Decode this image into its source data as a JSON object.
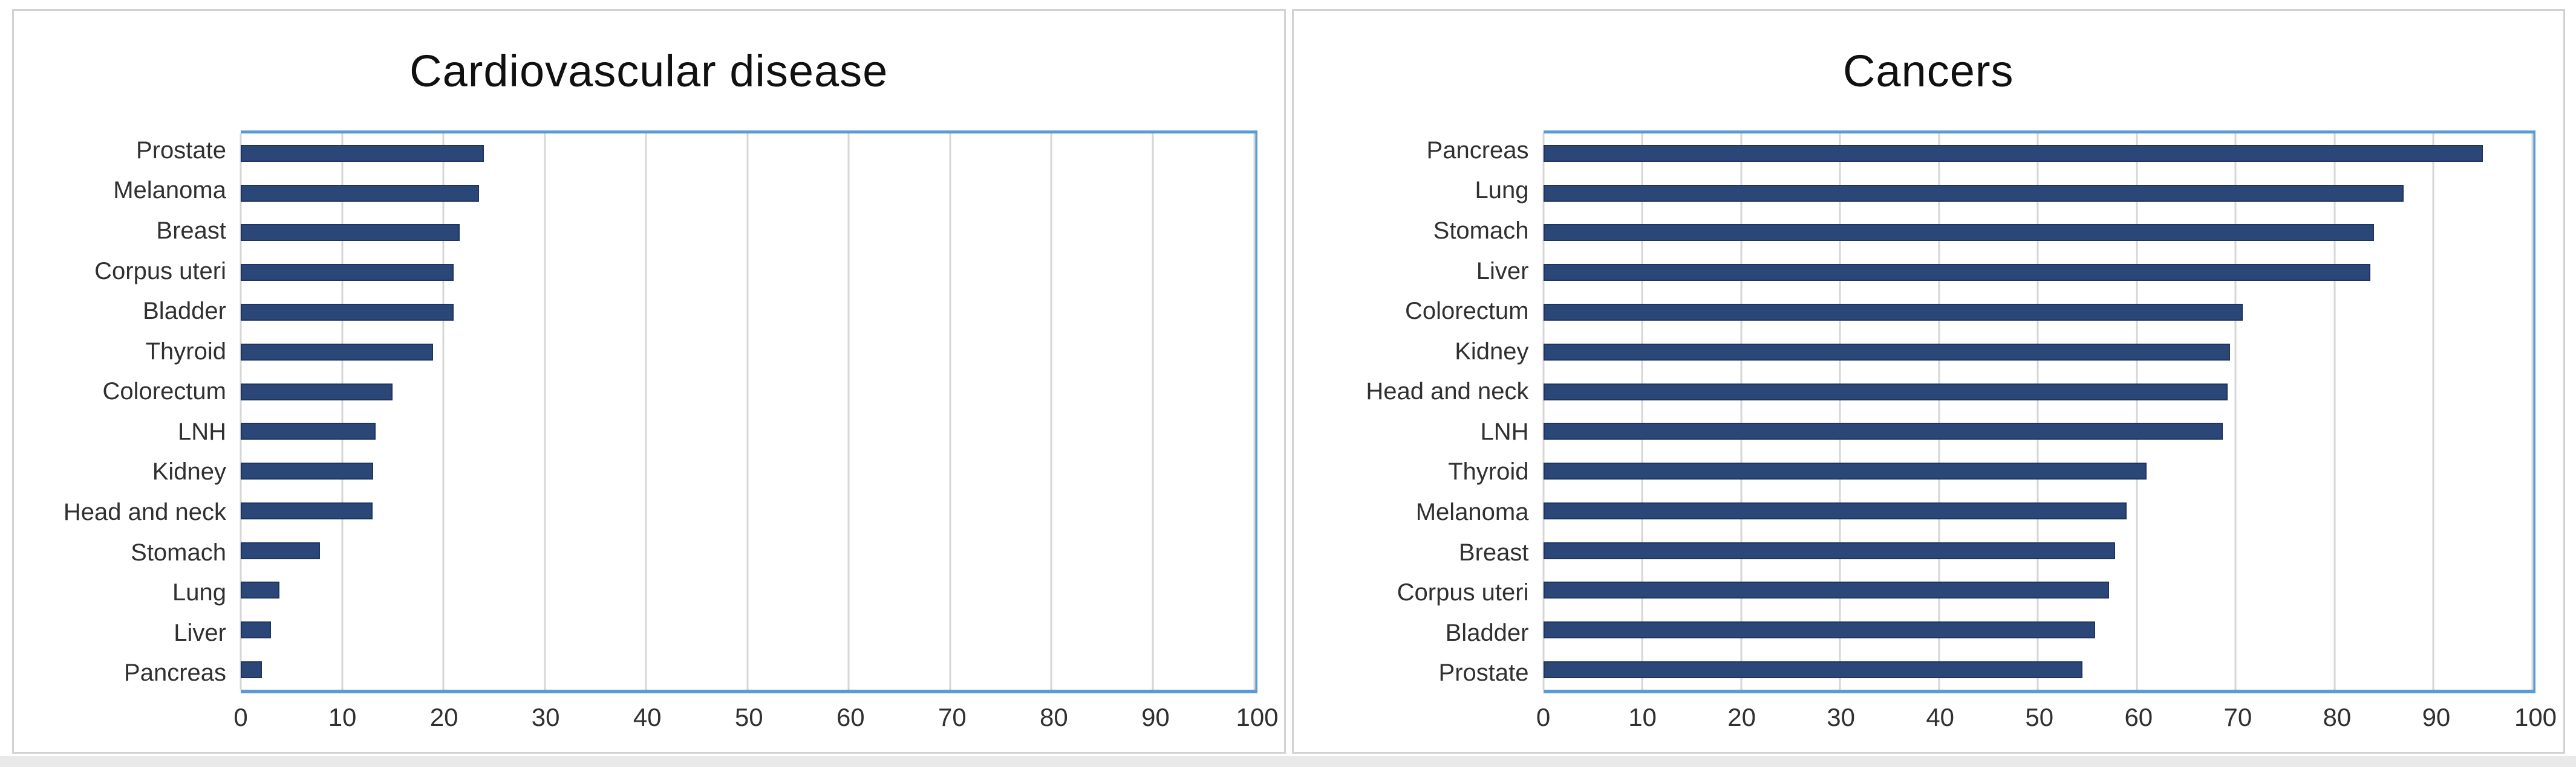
{
  "figure": {
    "background": "#ffffff",
    "bottom_strip_color": "#e9e9e9"
  },
  "chart_data": [
    {
      "type": "bar",
      "orientation": "horizontal",
      "title": "Cardiovascular disease",
      "categories": [
        "Prostate",
        "Melanoma",
        "Breast",
        "Corpus uteri",
        "Bladder",
        "Thyroid",
        "Colorectum",
        "LNH",
        "Kidney",
        "Head and neck",
        "Stomach",
        "Lung",
        "Liver",
        "Pancreas"
      ],
      "values": [
        24,
        23.5,
        21.6,
        21,
        21,
        19,
        15,
        13.3,
        13.1,
        13,
        7.8,
        3.8,
        3,
        2.1
      ],
      "xlabel": "",
      "ylabel": "",
      "xlim": [
        0,
        100
      ],
      "x_ticks": [
        0,
        10,
        20,
        30,
        40,
        50,
        60,
        70,
        80,
        90,
        100
      ],
      "grid": "vertical-major",
      "legend": "none",
      "colors": {
        "bar": "#2b4778",
        "bar_border": "#1e3560",
        "plot_border": "#5b9bd5",
        "gridline": "#d6d6d6",
        "panel_border": "#d2d2d2",
        "label_text": "#303030",
        "title_text": "#101010"
      }
    },
    {
      "type": "bar",
      "orientation": "horizontal",
      "title": "Cancers",
      "categories": [
        "Pancreas",
        "Lung",
        "Stomach",
        "Liver",
        "Colorectum",
        "Kidney",
        "Head and neck",
        "LNH",
        "Thyroid",
        "Melanoma",
        "Breast",
        "Corpus uteri",
        "Bladder",
        "Prostate"
      ],
      "values": [
        95,
        87,
        84,
        83.6,
        70.7,
        69.4,
        69.2,
        68.7,
        61,
        59,
        57.8,
        57.2,
        55.8,
        54.5
      ],
      "xlabel": "",
      "ylabel": "",
      "xlim": [
        0,
        100
      ],
      "x_ticks": [
        0,
        10,
        20,
        30,
        40,
        50,
        60,
        70,
        80,
        90,
        100
      ],
      "grid": "vertical-major",
      "legend": "none",
      "colors": {
        "bar": "#2b4778",
        "bar_border": "#1e3560",
        "plot_border": "#5b9bd5",
        "gridline": "#d6d6d6",
        "panel_border": "#d2d2d2",
        "label_text": "#303030",
        "title_text": "#101010"
      }
    }
  ]
}
